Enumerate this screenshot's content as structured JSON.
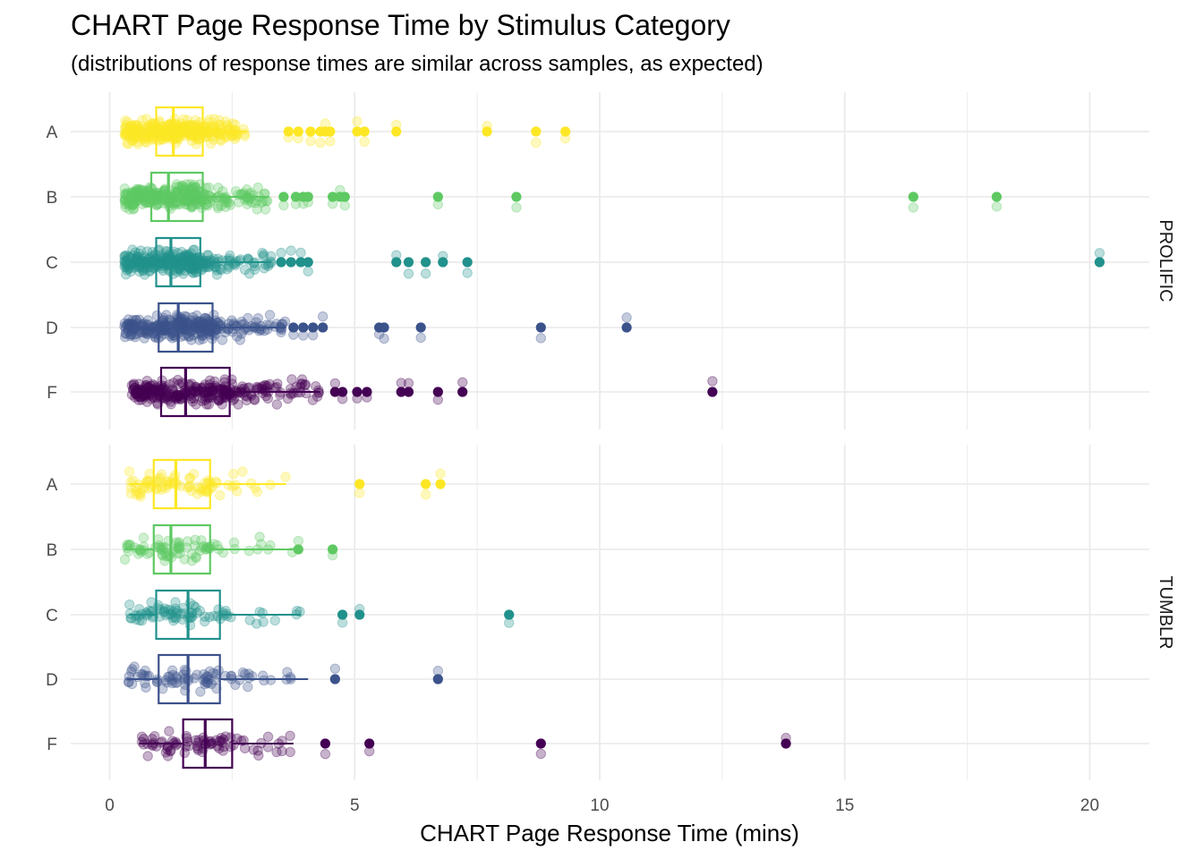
{
  "chart_data": {
    "type": "boxplot",
    "title": "CHART Page Response Time by Stimulus Category",
    "subtitle": "(distributions of response times are similar across samples, as expected)",
    "xlabel": "CHART Page Response Time (mins)",
    "ylabel": "",
    "xlim": [
      -0.7,
      21.2
    ],
    "x_ticks": [
      0,
      5,
      10,
      15,
      20
    ],
    "grid": true,
    "categories": [
      "A",
      "B",
      "C",
      "D",
      "F"
    ],
    "category_colors": {
      "A": "#fde725",
      "B": "#5ec962",
      "C": "#21918c",
      "D": "#3b528b",
      "F": "#440154"
    },
    "panels": [
      {
        "name": "PROLIFIC",
        "groups": [
          {
            "category": "A",
            "n_points": 300,
            "min": 0.3,
            "q1": 0.95,
            "median": 1.3,
            "q3": 1.9,
            "whisker_high": 2.8,
            "outliers": [
              3.65,
              3.85,
              4.1,
              4.3,
              4.4,
              4.5,
              5.05,
              5.2,
              5.85,
              7.7,
              8.7,
              9.3
            ]
          },
          {
            "category": "B",
            "n_points": 300,
            "min": 0.3,
            "q1": 0.85,
            "median": 1.2,
            "q3": 1.9,
            "whisker_high": 3.25,
            "outliers": [
              3.55,
              3.8,
              3.95,
              4.05,
              4.55,
              4.7,
              4.8,
              6.7,
              8.3,
              16.4,
              18.1
            ]
          },
          {
            "category": "C",
            "n_points": 300,
            "min": 0.3,
            "q1": 0.95,
            "median": 1.25,
            "q3": 1.85,
            "whisker_high": 3.3,
            "outliers": [
              3.5,
              3.7,
              3.9,
              4.05,
              5.85,
              6.1,
              6.45,
              6.8,
              7.3,
              20.2
            ]
          },
          {
            "category": "D",
            "n_points": 300,
            "min": 0.3,
            "q1": 1.0,
            "median": 1.4,
            "q3": 2.1,
            "whisker_high": 3.6,
            "outliers": [
              3.75,
              3.95,
              4.15,
              4.35,
              5.5,
              5.6,
              6.35,
              8.8,
              10.55
            ]
          },
          {
            "category": "F",
            "n_points": 300,
            "min": 0.45,
            "q1": 1.05,
            "median": 1.55,
            "q3": 2.45,
            "whisker_high": 4.3,
            "outliers": [
              4.6,
              4.75,
              5.05,
              5.25,
              5.95,
              6.1,
              6.7,
              7.2,
              12.3
            ]
          }
        ]
      },
      {
        "name": "TUMBLR",
        "groups": [
          {
            "category": "A",
            "n_points": 80,
            "min": 0.4,
            "q1": 0.9,
            "median": 1.35,
            "q3": 2.05,
            "whisker_high": 3.6,
            "outliers": [
              5.1,
              6.45,
              6.75
            ]
          },
          {
            "category": "B",
            "n_points": 80,
            "min": 0.3,
            "q1": 0.9,
            "median": 1.25,
            "q3": 2.05,
            "whisker_high": 3.8,
            "outliers": [
              3.85,
              4.55
            ]
          },
          {
            "category": "C",
            "n_points": 80,
            "min": 0.4,
            "q1": 0.95,
            "median": 1.6,
            "q3": 2.25,
            "whisker_high": 3.9,
            "outliers": [
              4.75,
              5.1,
              8.15
            ]
          },
          {
            "category": "D",
            "n_points": 80,
            "min": 0.35,
            "q1": 1.0,
            "median": 1.6,
            "q3": 2.25,
            "whisker_high": 4.05,
            "outliers": [
              4.6,
              6.7
            ]
          },
          {
            "category": "F",
            "n_points": 80,
            "min": 0.6,
            "q1": 1.5,
            "median": 1.95,
            "q3": 2.5,
            "whisker_high": 3.75,
            "outliers": [
              4.4,
              5.3,
              8.8,
              13.8
            ]
          }
        ]
      }
    ]
  }
}
